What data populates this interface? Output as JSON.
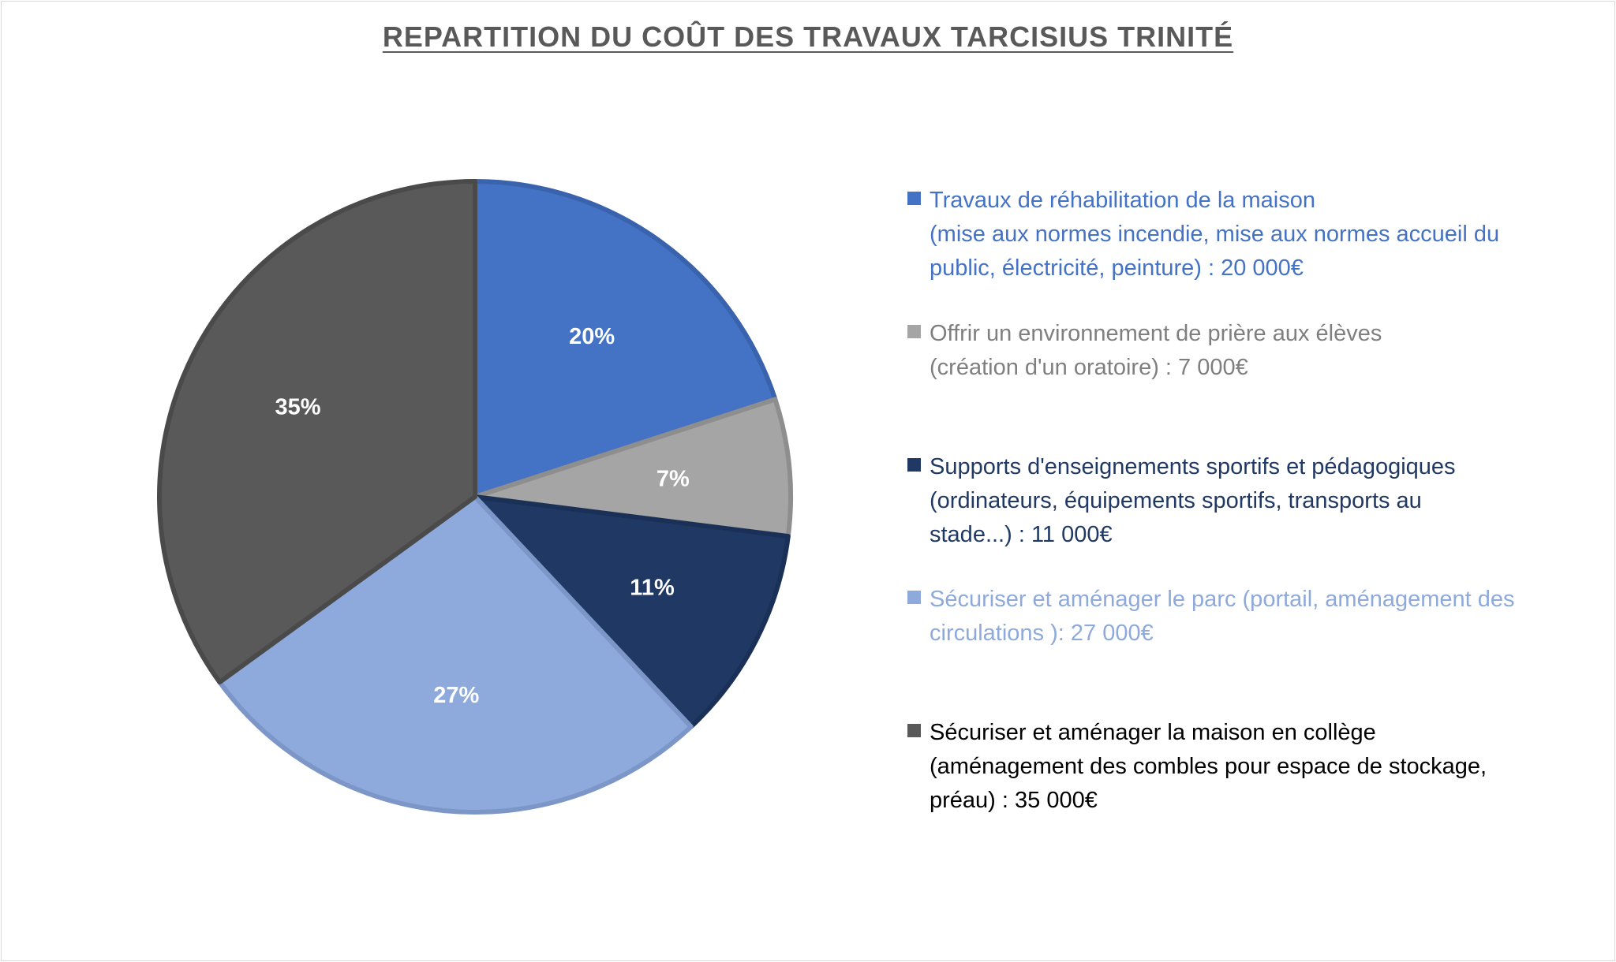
{
  "chart_data": {
    "type": "pie",
    "title": "REPARTITION DU COÛT DES TRAVAUX TARCISIUS TRINITÉ",
    "legend_position": "right",
    "series": [
      {
        "label_lines": [
          "Travaux de réhabilitation de la maison",
          "(mise aux normes incendie, mise aux normes accueil du",
          "public, électricité, peinture) : 20 000€"
        ],
        "value": 20000,
        "percent_label": "20%",
        "color": "#4472C4",
        "border": "#3A63AD",
        "text_color": "#4472C4"
      },
      {
        "label_lines": [
          "Offrir un environnement de prière aux élèves",
          "(création d'un oratoire) : 7 000€"
        ],
        "value": 7000,
        "percent_label": "7%",
        "color": "#A5A5A5",
        "border": "#8E8E8E",
        "text_color": "#7F7F7F"
      },
      {
        "label_lines": [
          "Supports d'enseignements sportifs et pédagogiques",
          "(ordinateurs, équipements sportifs, transports au",
          "stade...) : 11 000€"
        ],
        "value": 11000,
        "percent_label": "11%",
        "color": "#203864",
        "border": "#1B3057",
        "text_color": "#203864"
      },
      {
        "label_lines": [
          "Sécuriser et aménager le parc (portail, aménagement des",
          "circulations ): 27 000€"
        ],
        "value": 27000,
        "percent_label": "27%",
        "color": "#8EA9DB",
        "border": "#7C96C7",
        "text_color": "#8EA9DB"
      },
      {
        "label_lines": [
          "Sécuriser et aménager la maison en collège",
          "(aménagement des combles pour espace de stockage,",
          "préau) : 35 000€"
        ],
        "value": 35000,
        "percent_label": "35%",
        "color": "#595959",
        "border": "#4A4A4A",
        "text_color": "#000000"
      }
    ]
  }
}
